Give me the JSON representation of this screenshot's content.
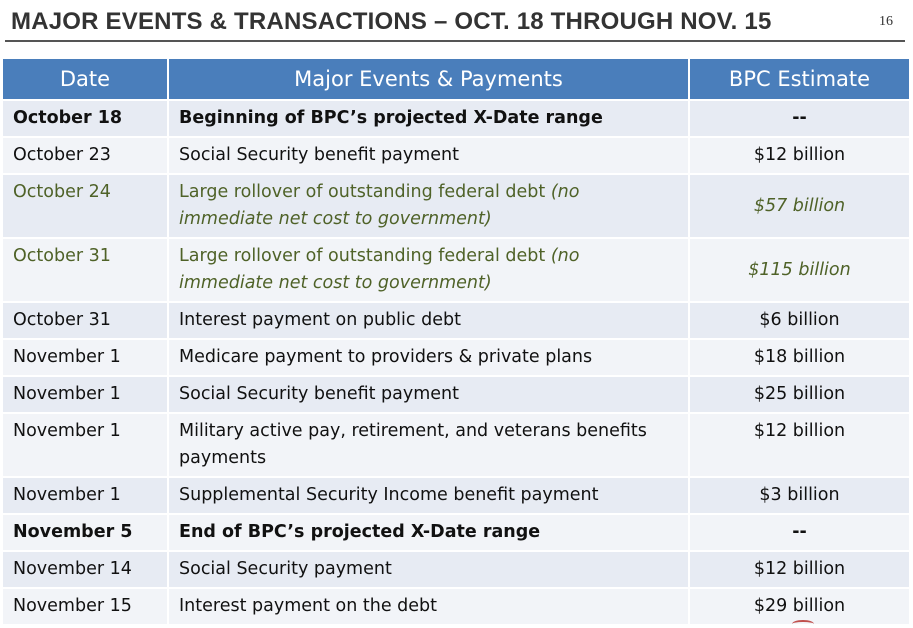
{
  "header": {
    "title": "MAJOR EVENTS & TRANSACTIONS – OCT. 18 THROUGH NOV. 15",
    "page_number": "16"
  },
  "table": {
    "columns": [
      "Date",
      "Major Events & Payments",
      "BPC Estimate"
    ],
    "rows": [
      {
        "date": "October 18",
        "event": "Beginning of BPC’s projected X-Date range",
        "note": "",
        "estimate": "--"
      },
      {
        "date": "October 23",
        "event": "Social Security benefit payment",
        "note": "",
        "estimate": "$12 billion"
      },
      {
        "date": "October 24",
        "event": "Large rollover of outstanding federal debt ",
        "note": "(no immediate net cost to government)",
        "estimate": "$57 billion"
      },
      {
        "date": "October 31",
        "event": "Large rollover of outstanding federal debt ",
        "note": "(no immediate net cost to government)",
        "estimate": "$115 billion"
      },
      {
        "date": "October 31",
        "event": "Interest payment on public debt",
        "note": "",
        "estimate": "$6 billion"
      },
      {
        "date": "November 1",
        "event": "Medicare payment to providers & private plans",
        "note": "",
        "estimate": "$18 billion"
      },
      {
        "date": "November 1",
        "event": "Social Security benefit payment",
        "note": "",
        "estimate": "$25 billion"
      },
      {
        "date": "November 1",
        "event": "Military active pay, retirement, and veterans benefits payments",
        "note": "",
        "estimate": "$12 billion"
      },
      {
        "date": "November 1",
        "event": "Supplemental Security Income benefit payment",
        "note": "",
        "estimate": "$3 billion"
      },
      {
        "date": "November 5",
        "event": "End of BPC’s projected X-Date range",
        "note": "",
        "estimate": "--"
      },
      {
        "date": "November 14",
        "event": "Social Security payment",
        "note": "",
        "estimate": "$12 billion"
      },
      {
        "date": "November 15",
        "event": "Interest payment  on the debt",
        "note": "",
        "estimate": "$29 billion"
      }
    ]
  },
  "colors": {
    "header_bg": "#4a7ebb",
    "row_odd": "#e7ebf3",
    "row_even": "#f2f4f8",
    "rollover_text": "#4f6228"
  }
}
